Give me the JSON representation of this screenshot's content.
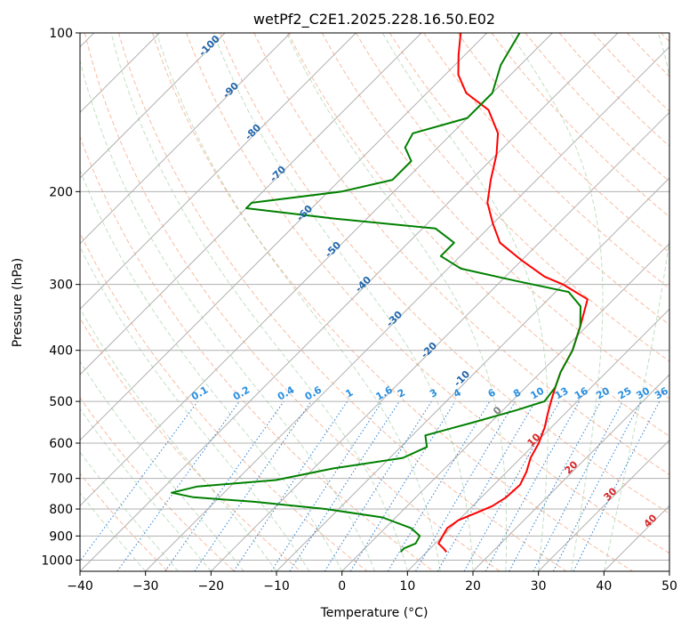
{
  "chart_data": {
    "type": "line",
    "title": "wetPf2_C2E1.2025.228.16.50.E02",
    "xlabel": "Temperature (°C)",
    "ylabel": "Pressure (hPa)",
    "xlim": [
      -40,
      50
    ],
    "ylim": [
      1050,
      100
    ],
    "y_scale": "log",
    "x_ticks": [
      "-40",
      "-30",
      "-20",
      "-10",
      "0",
      "10",
      "20",
      "30",
      "40",
      "50"
    ],
    "y_ticks": [
      "100",
      "200",
      "300",
      "400",
      "500",
      "600",
      "700",
      "800",
      "900",
      "1000"
    ],
    "grid": true,
    "series": [
      {
        "color": "#ff0000",
        "points": [
          [
            13.0,
            965
          ],
          [
            12.0,
            950
          ],
          [
            10.5,
            930
          ],
          [
            10.0,
            900
          ],
          [
            9.5,
            870
          ],
          [
            10.0,
            840
          ],
          [
            11.5,
            815
          ],
          [
            13.0,
            790
          ],
          [
            13.8,
            760
          ],
          [
            14.0,
            720
          ],
          [
            13.0,
            680
          ],
          [
            11.5,
            640
          ],
          [
            10.5,
            600
          ],
          [
            9.0,
            560
          ],
          [
            7.5,
            530
          ],
          [
            6.0,
            500
          ],
          [
            4.5,
            470
          ],
          [
            3.0,
            440
          ],
          [
            1.5,
            400
          ],
          [
            -1.0,
            360
          ],
          [
            -4.0,
            320
          ],
          [
            -10.0,
            300
          ],
          [
            -14.0,
            290
          ],
          [
            -20.0,
            270
          ],
          [
            -26.0,
            250
          ],
          [
            -30.0,
            230
          ],
          [
            -34.0,
            210
          ],
          [
            -37.0,
            190
          ],
          [
            -40.0,
            170
          ],
          [
            -43.0,
            155
          ],
          [
            -48.0,
            140
          ],
          [
            -54.0,
            130
          ],
          [
            -58.0,
            120
          ],
          [
            -61.0,
            110
          ],
          [
            -64.0,
            100
          ]
        ]
      },
      {
        "color": "#008000",
        "points": [
          [
            6.0,
            965
          ],
          [
            6.0,
            950
          ],
          [
            7.0,
            930
          ],
          [
            6.5,
            900
          ],
          [
            4.0,
            870
          ],
          [
            -2.0,
            830
          ],
          [
            -12.0,
            800
          ],
          [
            -24.0,
            775
          ],
          [
            -34.0,
            760
          ],
          [
            -38.0,
            745
          ],
          [
            -35.0,
            725
          ],
          [
            -24.0,
            705
          ],
          [
            -17.0,
            670
          ],
          [
            -8.0,
            640
          ],
          [
            -6.0,
            610
          ],
          [
            -8.0,
            580
          ],
          [
            -3.0,
            550
          ],
          [
            2.0,
            520
          ],
          [
            5.0,
            500
          ],
          [
            4.5,
            470
          ],
          [
            3.0,
            440
          ],
          [
            1.5,
            400
          ],
          [
            -1.0,
            360
          ],
          [
            -4.0,
            330
          ],
          [
            -8.0,
            310
          ],
          [
            -18.0,
            295
          ],
          [
            -28.0,
            280
          ],
          [
            -33.0,
            265
          ],
          [
            -33.0,
            250
          ],
          [
            -38.0,
            235
          ],
          [
            -55.0,
            225
          ],
          [
            -70.0,
            215
          ],
          [
            -70.0,
            210
          ],
          [
            -58.0,
            200
          ],
          [
            -52.0,
            190
          ],
          [
            -52.0,
            175
          ],
          [
            -55.0,
            165
          ],
          [
            -56.0,
            155
          ],
          [
            -50.0,
            145
          ],
          [
            -50.0,
            130
          ],
          [
            -53.0,
            115
          ],
          [
            -55.0,
            100
          ]
        ]
      }
    ],
    "dry_adiabat_labels": [
      "-100",
      "-90",
      "-80",
      "-70",
      "-60",
      "-50",
      "-40",
      "-30",
      "-20",
      "-10",
      "0",
      "10",
      "20",
      "30",
      "40"
    ],
    "mixing_ratio_labels": [
      "0.1",
      "0.2",
      "0.4",
      "0.6",
      "1",
      "1.6",
      "2",
      "3",
      "4",
      "6",
      "8",
      "10",
      "13",
      "16",
      "20",
      "25",
      "30",
      "36"
    ]
  }
}
